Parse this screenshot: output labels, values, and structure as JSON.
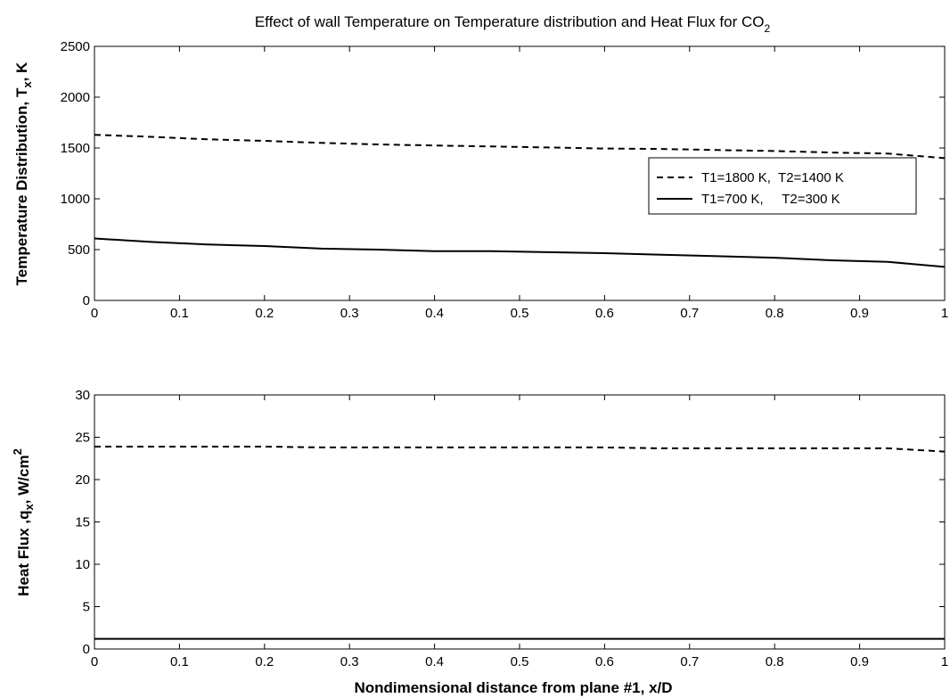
{
  "chart_data": [
    {
      "type": "line",
      "title": "Effect of wall Temperature on Temperature distribution and Heat Flux  for CO",
      "title_subscript": "2",
      "ylabel": "Temperature Distribution, T",
      "ylabel_subscript": "x",
      "ylabel_suffix": ", K",
      "xlabel": "",
      "xlim": [
        0,
        1
      ],
      "ylim": [
        0,
        2500
      ],
      "x_ticks": [
        "0",
        "0.1",
        "0.2",
        "0.3",
        "0.4",
        "0.5",
        "0.6",
        "0.7",
        "0.8",
        "0.9",
        "1"
      ],
      "y_ticks": [
        "0",
        "500",
        "1000",
        "1500",
        "2000",
        "2500"
      ],
      "grid": false,
      "legend_position": "right",
      "series": [
        {
          "name": "T1=1800 K,  T2=1400 K",
          "style": "dashed",
          "color": "#000000",
          "x": [
            0,
            0.067,
            0.133,
            0.2,
            0.267,
            0.333,
            0.4,
            0.467,
            0.533,
            0.6,
            0.667,
            0.733,
            0.8,
            0.867,
            0.933,
            1.0
          ],
          "y": [
            1630,
            1610,
            1585,
            1570,
            1550,
            1535,
            1525,
            1515,
            1505,
            1495,
            1490,
            1480,
            1470,
            1455,
            1445,
            1400
          ]
        },
        {
          "name": "T1=700 K,     T2=300 K",
          "style": "solid",
          "color": "#000000",
          "x": [
            0,
            0.067,
            0.133,
            0.2,
            0.267,
            0.333,
            0.4,
            0.467,
            0.533,
            0.6,
            0.667,
            0.733,
            0.8,
            0.867,
            0.933,
            1.0
          ],
          "y": [
            610,
            575,
            550,
            535,
            510,
            500,
            485,
            485,
            475,
            465,
            450,
            435,
            420,
            395,
            380,
            330
          ]
        }
      ]
    },
    {
      "type": "line",
      "title": "",
      "ylabel": "Heat Flux ,q",
      "ylabel_subscript": "x",
      "ylabel_suffix": ", W/cm",
      "ylabel_superscript": "2",
      "xlabel": "Nondimensional distance from plane #1, x/D",
      "xlim": [
        0,
        1
      ],
      "ylim": [
        0,
        30
      ],
      "x_ticks": [
        "0",
        "0.1",
        "0.2",
        "0.3",
        "0.4",
        "0.5",
        "0.6",
        "0.7",
        "0.8",
        "0.9",
        "1"
      ],
      "y_ticks": [
        "0",
        "5",
        "10",
        "15",
        "20",
        "25",
        "30"
      ],
      "grid": false,
      "series": [
        {
          "style": "dashed",
          "color": "#000000",
          "x": [
            0,
            0.067,
            0.133,
            0.2,
            0.267,
            0.333,
            0.4,
            0.467,
            0.533,
            0.6,
            0.667,
            0.733,
            0.8,
            0.867,
            0.933,
            1.0
          ],
          "y": [
            23.9,
            23.9,
            23.9,
            23.9,
            23.8,
            23.8,
            23.8,
            23.8,
            23.8,
            23.8,
            23.7,
            23.7,
            23.7,
            23.7,
            23.7,
            23.3
          ]
        },
        {
          "style": "solid",
          "color": "#000000",
          "x": [
            0,
            0.2,
            0.4,
            0.6,
            0.8,
            1.0
          ],
          "y": [
            1.2,
            1.2,
            1.2,
            1.2,
            1.2,
            1.2
          ]
        }
      ]
    }
  ]
}
